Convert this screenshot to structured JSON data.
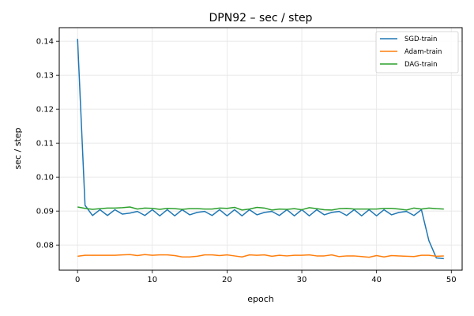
{
  "chart_data": {
    "type": "line",
    "title": "DPN92 – sec / step",
    "xlabel": "epoch",
    "ylabel": "sec / step",
    "xlim": [
      -2.45,
      51.45
    ],
    "ylim": [
      0.0726,
      0.144
    ],
    "xticks": [
      0,
      10,
      20,
      30,
      40,
      50
    ],
    "xtick_labels": [
      "0",
      "10",
      "20",
      "30",
      "40",
      "50"
    ],
    "yticks": [
      0.08,
      0.09,
      0.1,
      0.11,
      0.12,
      0.13,
      0.14
    ],
    "ytick_labels": [
      "0.08",
      "0.09",
      "0.10",
      "0.11",
      "0.12",
      "0.13",
      "0.14"
    ],
    "grid": true,
    "legend_position": "top-right",
    "x": [
      0,
      1,
      2,
      3,
      4,
      5,
      6,
      7,
      8,
      9,
      10,
      11,
      12,
      13,
      14,
      15,
      16,
      17,
      18,
      19,
      20,
      21,
      22,
      23,
      24,
      25,
      26,
      27,
      28,
      29,
      30,
      31,
      32,
      33,
      34,
      35,
      36,
      37,
      38,
      39,
      40,
      41,
      42,
      43,
      44,
      45,
      46,
      47,
      48,
      49
    ],
    "series": [
      {
        "name": "SGD-train",
        "color": "#1f77b4",
        "values": [
          0.1407,
          0.0917,
          0.0887,
          0.0904,
          0.0887,
          0.0904,
          0.0891,
          0.0894,
          0.0899,
          0.0887,
          0.0904,
          0.0886,
          0.0904,
          0.0886,
          0.0904,
          0.0889,
          0.0896,
          0.0899,
          0.0887,
          0.0904,
          0.0886,
          0.0904,
          0.0886,
          0.0904,
          0.0889,
          0.0896,
          0.0899,
          0.0887,
          0.0904,
          0.0886,
          0.0904,
          0.0886,
          0.0904,
          0.0889,
          0.0896,
          0.0899,
          0.0887,
          0.0904,
          0.0886,
          0.0904,
          0.0886,
          0.0904,
          0.0889,
          0.0896,
          0.0899,
          0.0887,
          0.0904,
          0.0813,
          0.0762,
          0.076
        ]
      },
      {
        "name": "Adam-train",
        "color": "#ff7f0e",
        "values": [
          0.0767,
          0.077,
          0.077,
          0.077,
          0.077,
          0.077,
          0.0771,
          0.0772,
          0.0769,
          0.0772,
          0.077,
          0.0771,
          0.0771,
          0.0769,
          0.0765,
          0.0765,
          0.0767,
          0.0771,
          0.0771,
          0.0769,
          0.0771,
          0.0768,
          0.0765,
          0.0771,
          0.077,
          0.0771,
          0.0767,
          0.077,
          0.0768,
          0.077,
          0.077,
          0.0771,
          0.0768,
          0.0768,
          0.0771,
          0.0766,
          0.0768,
          0.0768,
          0.0766,
          0.0764,
          0.0769,
          0.0765,
          0.0769,
          0.0768,
          0.0767,
          0.0766,
          0.077,
          0.077,
          0.0767,
          0.0768
        ]
      },
      {
        "name": "DAG-train",
        "color": "#2ca02c",
        "values": [
          0.0912,
          0.0908,
          0.0905,
          0.0907,
          0.0909,
          0.0909,
          0.091,
          0.0912,
          0.0906,
          0.0909,
          0.0908,
          0.0905,
          0.0908,
          0.0907,
          0.0905,
          0.0907,
          0.0907,
          0.0906,
          0.0906,
          0.0909,
          0.0908,
          0.0911,
          0.0903,
          0.0906,
          0.0911,
          0.0909,
          0.0903,
          0.0906,
          0.0905,
          0.0907,
          0.0904,
          0.091,
          0.0907,
          0.0904,
          0.0903,
          0.0907,
          0.0908,
          0.0906,
          0.0906,
          0.0906,
          0.0906,
          0.0908,
          0.0908,
          0.0906,
          0.0903,
          0.0909,
          0.0906,
          0.0909,
          0.0907,
          0.0906
        ]
      }
    ]
  }
}
